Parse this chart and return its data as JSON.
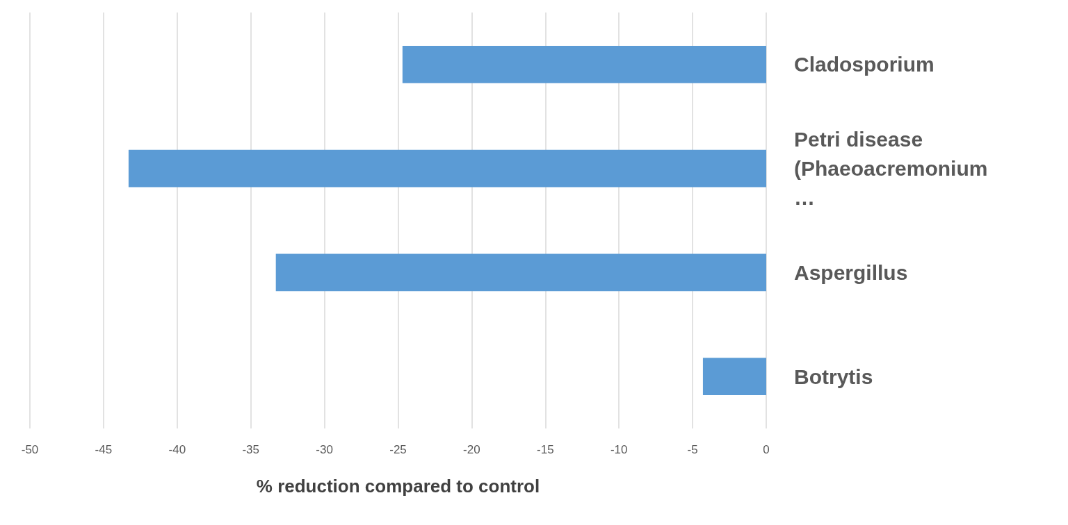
{
  "chart_data": {
    "type": "bar",
    "orientation": "horizontal",
    "xlabel": "% reduction compared to control",
    "categories": [
      "Cladosporium",
      "Petri disease (Phaeoacremonium…",
      "Aspergillus",
      "Botrytis"
    ],
    "values": [
      -24.7,
      -43.3,
      -33.3,
      -4.3
    ],
    "color": "#5b9bd5",
    "xlim": [
      -50,
      0
    ],
    "xticks": [
      -50,
      -45,
      -40,
      -35,
      -30,
      -25,
      -20,
      -15,
      -10,
      -5,
      0
    ],
    "grid": "x"
  }
}
